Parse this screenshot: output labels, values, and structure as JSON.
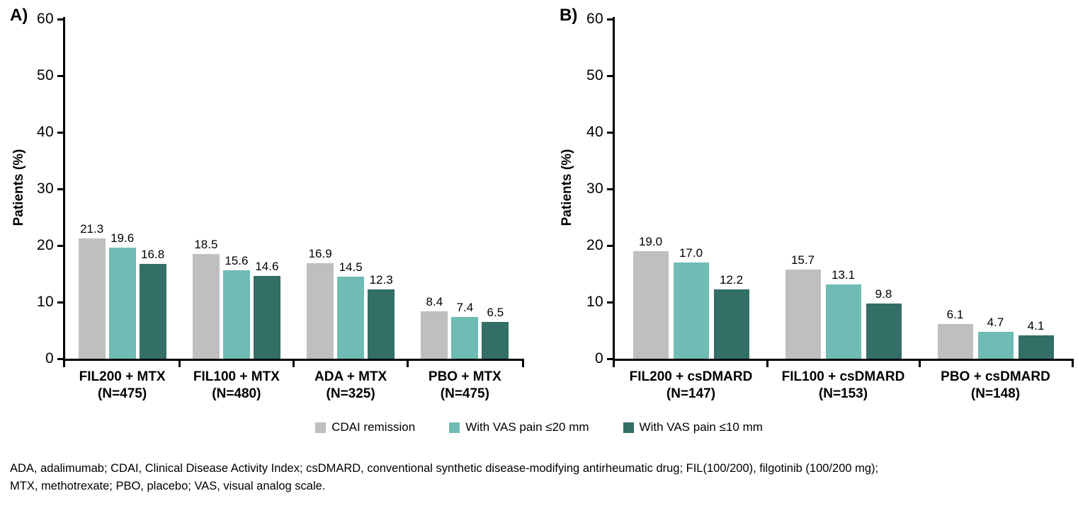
{
  "figure": {
    "panel_a_label": "A)",
    "panel_b_label": "B)",
    "ylabel": "Patients (%)"
  },
  "legend": {
    "items": [
      {
        "label": "CDAI remission",
        "color": "#bfbfc1"
      },
      {
        "label": "With VAS pain ≤20 mm",
        "color": "#6fbcb4"
      },
      {
        "label": "With VAS pain ≤10 mm",
        "color": "#336e67"
      }
    ]
  },
  "footnote": {
    "line1": "ADA, adalimumab; CDAI, Clinical Disease Activity Index; csDMARD, conventional synthetic disease-modifying antirheumatic drug; FIL(100/200), filgotinib (100/200 mg);",
    "line2": "MTX, methotrexate; PBO, placebo; VAS, visual analog scale."
  },
  "chart_data": [
    {
      "type": "bar",
      "panel": "A",
      "title": "",
      "xlabel": "",
      "ylabel": "Patients (%)",
      "ylim": [
        0,
        60
      ],
      "yticks": [
        0,
        10,
        20,
        30,
        40,
        50,
        60
      ],
      "grid": false,
      "legend_position": "bottom-shared",
      "categories": [
        "FIL200 + MTX",
        "FIL100 + MTX",
        "ADA + MTX",
        "PBO + MTX"
      ],
      "category_n": [
        "(N=475)",
        "(N=480)",
        "(N=325)",
        "(N=475)"
      ],
      "series": [
        {
          "name": "CDAI remission",
          "color": "#bfbfc1",
          "values": [
            21.3,
            18.5,
            16.9,
            8.4
          ],
          "labels": [
            "21.3",
            "18.5",
            "16.9",
            "8.4"
          ]
        },
        {
          "name": "With VAS pain ≤20 mm",
          "color": "#6fbcb4",
          "values": [
            19.6,
            15.6,
            14.5,
            7.4
          ],
          "labels": [
            "19.6",
            "15.6",
            "14.5",
            "7.4"
          ]
        },
        {
          "name": "With VAS pain ≤10 mm",
          "color": "#336e67",
          "values": [
            16.8,
            14.6,
            12.3,
            6.5
          ],
          "labels": [
            "16.8",
            "14.6",
            "12.3",
            "6.5"
          ]
        }
      ]
    },
    {
      "type": "bar",
      "panel": "B",
      "title": "",
      "xlabel": "",
      "ylabel": "Patients (%)",
      "ylim": [
        0,
        60
      ],
      "yticks": [
        0,
        10,
        20,
        30,
        40,
        50,
        60
      ],
      "grid": false,
      "legend_position": "bottom-shared",
      "categories": [
        "FIL200 + csDMARD",
        "FIL100 + csDMARD",
        "PBO + csDMARD"
      ],
      "category_n": [
        "(N=147)",
        "(N=153)",
        "(N=148)"
      ],
      "series": [
        {
          "name": "CDAI remission",
          "color": "#bfbfc1",
          "values": [
            19.0,
            15.7,
            6.1
          ],
          "labels": [
            "19.0",
            "15.7",
            "6.1"
          ]
        },
        {
          "name": "With VAS pain ≤20 mm",
          "color": "#6fbcb4",
          "values": [
            17.0,
            13.1,
            4.7
          ],
          "labels": [
            "17.0",
            "13.1",
            "4.7"
          ]
        },
        {
          "name": "With VAS pain ≤10 mm",
          "color": "#336e67",
          "values": [
            12.2,
            9.8,
            4.1
          ],
          "labels": [
            "12.2",
            "9.8",
            "4.1"
          ]
        }
      ]
    }
  ]
}
